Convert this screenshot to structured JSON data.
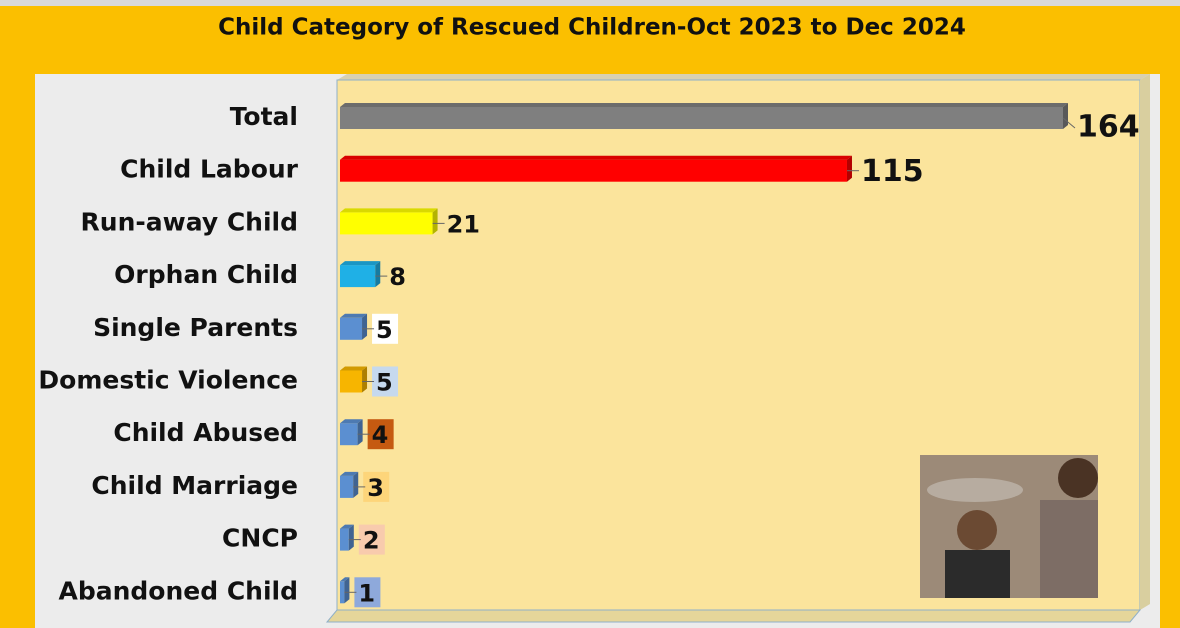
{
  "chart_data": {
    "type": "bar",
    "orientation": "horizontal",
    "title": "Child Category of Rescued Children-Oct 2023 to Dec 2024",
    "categories": [
      "Total",
      "Child Labour",
      "Run-away Child",
      "Orphan Child",
      "Single Parents",
      "Domestic Violence",
      "Child Abused",
      "Child Marriage",
      "CNCP",
      "Abandoned Child"
    ],
    "values": [
      164,
      115,
      21,
      8,
      5,
      5,
      4,
      3,
      2,
      1
    ],
    "colors": [
      "#7f7f7f",
      "#ff0000",
      "#ffff00",
      "#1fb0e6",
      "#5b8fd1",
      "#f7b500",
      "#5b8fd1",
      "#5b8fd1",
      "#5b8fd1",
      "#5b8fd1"
    ],
    "label_backgrounds": [
      null,
      null,
      null,
      null,
      "#ffffff",
      "#c6d9ee",
      "#c55a11",
      "#fdd57a",
      "#f8cbad",
      "#8ea9db"
    ],
    "grid": false
  }
}
